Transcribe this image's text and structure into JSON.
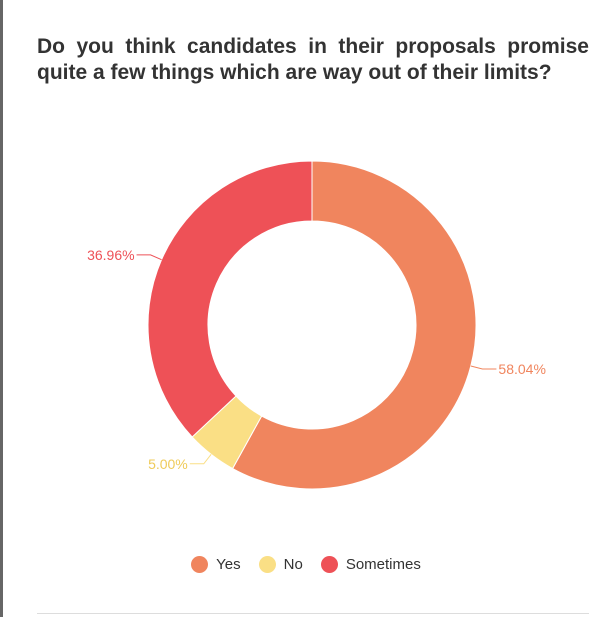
{
  "title": "Do you think candidates in their proposals promise quite a few things which are way out of their limits?",
  "colors": {
    "yes": "#F0855E",
    "no": "#FADF85",
    "sometimes": "#EE5157"
  },
  "chart_data": {
    "type": "pie",
    "donut": true,
    "title": "Do you think candidates in their proposals promise quite a few things which are way out of their limits?",
    "categories": [
      "Yes",
      "No",
      "Sometimes"
    ],
    "values": [
      58.04,
      5.0,
      36.96
    ],
    "labels": [
      "58.04%",
      "5.00%",
      "36.96%"
    ],
    "colors": [
      "#F0855E",
      "#FADF85",
      "#EE5157"
    ],
    "start_angle": "top",
    "direction": "clockwise",
    "legend": "bottom-center"
  },
  "legend": [
    {
      "label": "Yes",
      "color": "#F0855E"
    },
    {
      "label": "No",
      "color": "#FADF85"
    },
    {
      "label": "Sometimes",
      "color": "#EE5157"
    }
  ]
}
